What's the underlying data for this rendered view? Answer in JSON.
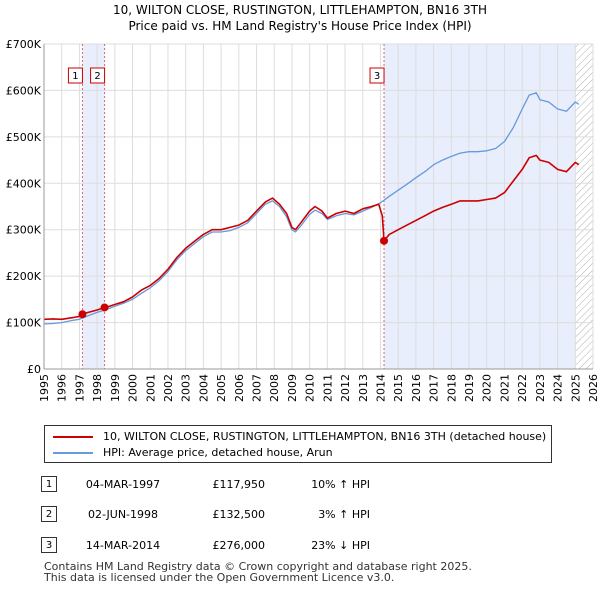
{
  "chart_data": {
    "type": "line",
    "title": "10, WILTON CLOSE, RUSTINGTON, LITTLEHAMPTON, BN16 3TH",
    "subtitle": "Price paid vs. HM Land Registry's House Price Index (HPI)",
    "xlim": [
      1995,
      2026
    ],
    "ylim": [
      0,
      700000
    ],
    "x_ticks": [
      1995,
      1996,
      1997,
      1998,
      1999,
      2000,
      2001,
      2002,
      2003,
      2004,
      2005,
      2006,
      2007,
      2008,
      2009,
      2010,
      2011,
      2012,
      2013,
      2014,
      2015,
      2016,
      2017,
      2018,
      2019,
      2020,
      2021,
      2022,
      2023,
      2024,
      2025,
      2026
    ],
    "y_ticks": [
      {
        "value": 0,
        "label": "£0"
      },
      {
        "value": 100000,
        "label": "£100K"
      },
      {
        "value": 200000,
        "label": "£200K"
      },
      {
        "value": 300000,
        "label": "£300K"
      },
      {
        "value": 400000,
        "label": "£400K"
      },
      {
        "value": 500000,
        "label": "£500K"
      },
      {
        "value": 600000,
        "label": "£600K"
      },
      {
        "value": 700000,
        "label": "£700K"
      }
    ],
    "shaded_regions": [
      [
        1997.17,
        1998.42
      ],
      [
        2014.2,
        2025.0
      ]
    ],
    "hatched_from": 2025.0,
    "series": [
      {
        "name": "10, WILTON CLOSE, RUSTINGTON, LITTLEHAMPTON, BN16 3TH (detached house)",
        "color": "#cc0000",
        "x": [
          1995.0,
          1995.5,
          1996.0,
          1996.5,
          1997.0,
          1997.17,
          1997.5,
          1998.0,
          1998.42,
          1998.7,
          1999.0,
          1999.5,
          2000.0,
          2000.5,
          2001.0,
          2001.5,
          2002.0,
          2002.5,
          2003.0,
          2003.5,
          2004.0,
          2004.5,
          2005.0,
          2005.5,
          2006.0,
          2006.5,
          2007.0,
          2007.5,
          2007.9,
          2008.3,
          2008.7,
          2009.0,
          2009.2,
          2009.5,
          2010.0,
          2010.3,
          2010.7,
          2011.0,
          2011.5,
          2012.0,
          2012.5,
          2013.0,
          2013.5,
          2013.9,
          2014.1,
          2014.2,
          2014.5,
          2015.0,
          2015.5,
          2016.0,
          2016.5,
          2017.0,
          2017.5,
          2018.0,
          2018.5,
          2019.0,
          2019.5,
          2020.0,
          2020.5,
          2021.0,
          2021.5,
          2022.0,
          2022.4,
          2022.8,
          2023.0,
          2023.5,
          2024.0,
          2024.5,
          2025.0,
          2025.2
        ],
        "y": [
          107000,
          108000,
          107000,
          110000,
          113000,
          117950,
          122000,
          127000,
          132500,
          135000,
          139000,
          145000,
          155000,
          170000,
          180000,
          195000,
          215000,
          240000,
          260000,
          275000,
          290000,
          300000,
          300000,
          305000,
          310000,
          320000,
          340000,
          360000,
          368000,
          355000,
          335000,
          305000,
          300000,
          315000,
          340000,
          350000,
          340000,
          325000,
          335000,
          340000,
          335000,
          345000,
          350000,
          355000,
          330000,
          276000,
          290000,
          300000,
          310000,
          320000,
          330000,
          340000,
          348000,
          355000,
          362000,
          362000,
          362000,
          365000,
          368000,
          380000,
          405000,
          430000,
          455000,
          460000,
          450000,
          445000,
          430000,
          425000,
          445000,
          440000
        ]
      },
      {
        "name": "HPI: Average price, detached house, Arun",
        "color": "#6699dd",
        "x": [
          1995.0,
          1995.5,
          1996.0,
          1996.5,
          1997.0,
          1997.5,
          1998.0,
          1998.5,
          1999.0,
          1999.5,
          2000.0,
          2000.5,
          2001.0,
          2001.5,
          2002.0,
          2002.5,
          2003.0,
          2003.5,
          2004.0,
          2004.5,
          2005.0,
          2005.5,
          2006.0,
          2006.5,
          2007.0,
          2007.5,
          2007.9,
          2008.3,
          2008.7,
          2009.0,
          2009.2,
          2009.5,
          2010.0,
          2010.3,
          2010.7,
          2011.0,
          2011.5,
          2012.0,
          2012.5,
          2013.0,
          2013.5,
          2014.0,
          2014.5,
          2015.0,
          2015.5,
          2016.0,
          2016.5,
          2017.0,
          2017.5,
          2018.0,
          2018.5,
          2019.0,
          2019.5,
          2020.0,
          2020.5,
          2021.0,
          2021.5,
          2022.0,
          2022.4,
          2022.8,
          2023.0,
          2023.5,
          2024.0,
          2024.5,
          2025.0,
          2025.2
        ],
        "y": [
          97000,
          98000,
          100000,
          104000,
          107000,
          115000,
          122000,
          128000,
          135000,
          142000,
          150000,
          163000,
          175000,
          190000,
          210000,
          235000,
          255000,
          270000,
          285000,
          295000,
          295000,
          298000,
          305000,
          315000,
          335000,
          355000,
          362000,
          350000,
          328000,
          300000,
          295000,
          308000,
          333000,
          342000,
          335000,
          322000,
          330000,
          335000,
          332000,
          340000,
          348000,
          358000,
          372000,
          385000,
          398000,
          412000,
          425000,
          440000,
          450000,
          458000,
          465000,
          468000,
          468000,
          470000,
          475000,
          490000,
          520000,
          560000,
          590000,
          595000,
          580000,
          575000,
          560000,
          555000,
          575000,
          570000
        ]
      }
    ],
    "transactions": [
      {
        "num": "1",
        "date": "04-MAR-1997",
        "price": "£117,950",
        "hpi": "10% ↑ HPI",
        "x": 1997.17,
        "y": 117950
      },
      {
        "num": "2",
        "date": "02-JUN-1998",
        "price": "£132,500",
        "hpi": "3% ↑ HPI",
        "x": 1998.42,
        "y": 132500
      },
      {
        "num": "3",
        "date": "14-MAR-2014",
        "price": "£276,000",
        "hpi": "23% ↓ HPI",
        "x": 2014.2,
        "y": 276000
      }
    ],
    "legend": [
      {
        "label": "10, WILTON CLOSE, RUSTINGTON, LITTLEHAMPTON, BN16 3TH (detached house)",
        "color": "#cc0000"
      },
      {
        "label": "HPI: Average price, detached house, Arun",
        "color": "#6699dd"
      }
    ],
    "footer": [
      "Contains HM Land Registry data © Crown copyright and database right 2025.",
      "This data is licensed under the Open Government Licence v3.0."
    ]
  }
}
